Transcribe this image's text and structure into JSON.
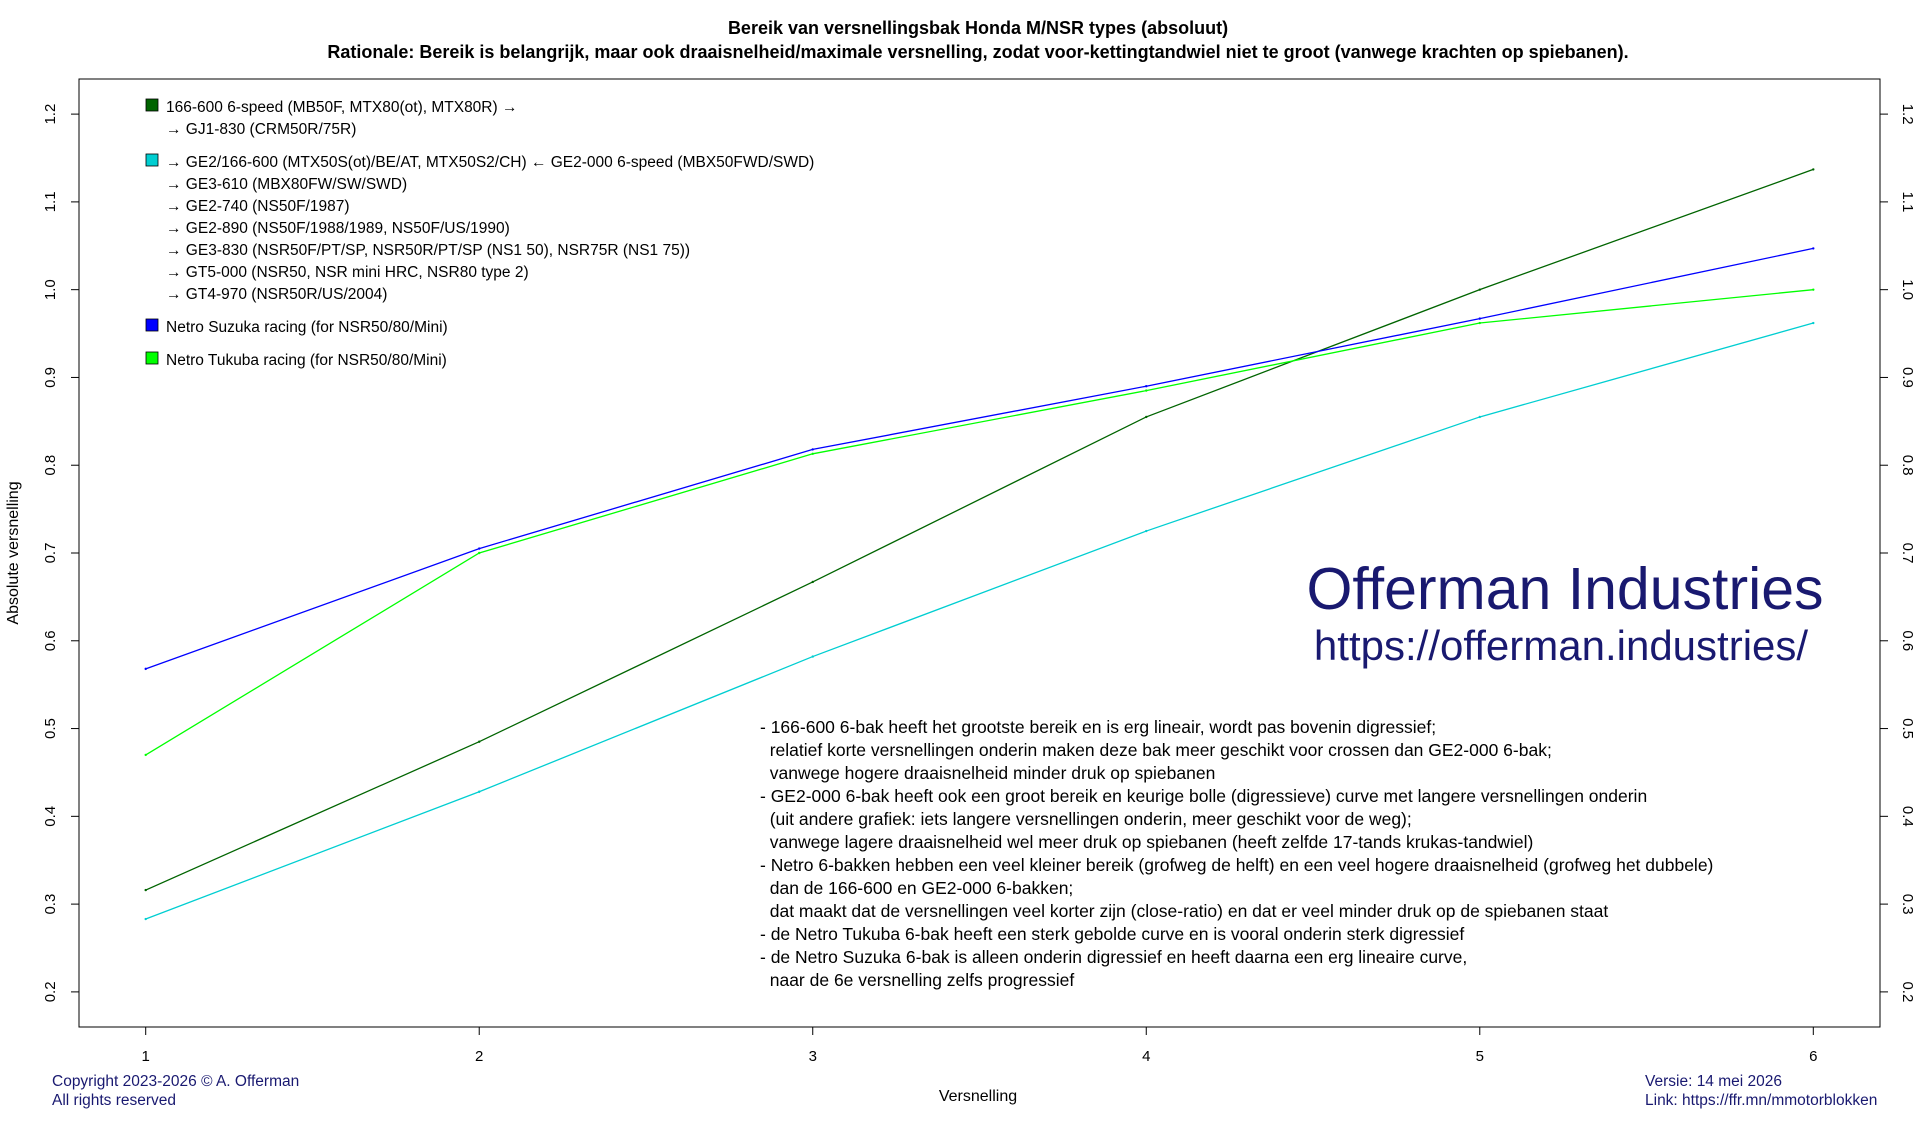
{
  "chart_data": {
    "type": "line",
    "title": "Bereik van versnellingsbak Honda M/NSR types (absoluut)",
    "subtitle": "Rationale: Bereik is belangrijk, maar ook draaisnelheid/maximale versnelling, zodat voor-kettingtandwiel niet te groot (vanwege krachten op spiebanen).",
    "xlabel": "Versnelling",
    "ylabel": "Absolute versnelling",
    "x": [
      1,
      2,
      3,
      4,
      5,
      6
    ],
    "x_ticks": [
      "1",
      "2",
      "3",
      "4",
      "5",
      "6"
    ],
    "y_ticks": [
      "0.2",
      "0.3",
      "0.4",
      "0.5",
      "0.6",
      "0.7",
      "0.8",
      "0.9",
      "1.0",
      "1.1",
      "1.2"
    ],
    "xlim": [
      0.8,
      6.2
    ],
    "ylim": [
      0.16,
      1.24
    ],
    "grid": false,
    "legend_position": "top-left",
    "series": [
      {
        "color": "#006400",
        "values": [
          0.316,
          0.485,
          0.667,
          0.855,
          1.0,
          1.137
        ],
        "legend_lines": [
          "166-600 6-speed (MB50F, MTX80(ot), MTX80R) →",
          "→ GJ1-830 (CRM50R/75R)"
        ]
      },
      {
        "color": "#00CED1",
        "values": [
          0.283,
          0.428,
          0.582,
          0.725,
          0.855,
          0.962
        ],
        "legend_lines": [
          "→ GE2/166-600 (MTX50S(ot)/BE/AT, MTX50S2/CH) ← GE2-000 6-speed (MBX50FWD/SWD)",
          "→ GE3-610 (MBX80FW/SW/SWD)",
          "→ GE2-740 (NS50F/1987)",
          "→ GE2-890 (NS50F/1988/1989, NS50F/US/1990)",
          "→ GE3-830 (NSR50F/PT/SP, NSR50R/PT/SP (NS1 50), NSR75R (NS1 75))",
          "→ GT5-000 (NSR50, NSR mini HRC, NSR80 type 2)",
          "→ GT4-970 (NSR50R/US/2004)"
        ]
      },
      {
        "color": "#0000FF",
        "values": [
          0.568,
          0.705,
          0.818,
          0.89,
          0.967,
          1.047
        ],
        "legend_lines": [
          "Netro Suzuka racing (for NSR50/80/Mini)"
        ]
      },
      {
        "color": "#00FF00",
        "values": [
          0.47,
          0.7,
          0.813,
          0.885,
          0.962,
          1.0
        ],
        "legend_lines": [
          "Netro Tukuba racing (for NSR50/80/Mini)"
        ]
      }
    ],
    "annotations": [
      "- 166-600 6-bak heeft het grootste bereik en is erg lineair, wordt pas bovenin digressief;",
      "  relatief korte versnellingen onderin maken deze bak meer geschikt voor crossen dan GE2-000 6-bak;",
      "  vanwege hogere draaisnelheid minder druk op spiebanen",
      "- GE2-000 6-bak heeft ook een groot bereik en keurige bolle (digressieve) curve met langere versnellingen onderin",
      "  (uit andere grafiek: iets langere versnellingen onderin, meer geschikt voor de weg);",
      "  vanwege lagere draaisnelheid wel meer druk op spiebanen (heeft zelfde 17-tands krukas-tandwiel)",
      "- Netro 6-bakken hebben een veel kleiner bereik (grofweg de helft) en een veel hogere draaisnelheid (grofweg het dubbele)",
      "  dan de 166-600 en GE2-000 6-bakken;",
      "  dat maakt dat de versnellingen veel korter zijn (close-ratio) en dat er veel minder druk op de spiebanen staat",
      "- de Netro Tukuba 6-bak heeft een sterk gebolde curve en is vooral onderin sterk digressief",
      "- de Netro Suzuka 6-bak is alleen onderin digressief en heeft daarna een erg lineaire curve,",
      "  naar de 6e versnelling zelfs progressief"
    ]
  },
  "brand": {
    "name": "Offerman Industries",
    "url": "https://offerman.industries/",
    "color": "#191970"
  },
  "footer": {
    "copyright": "Copyright 2023-2026 © A. Offerman",
    "rights": "All rights reserved",
    "version": "Versie: 14 mei 2026",
    "link": "Link: https://ffr.mn/mmotorblokken",
    "color": "#191970"
  }
}
